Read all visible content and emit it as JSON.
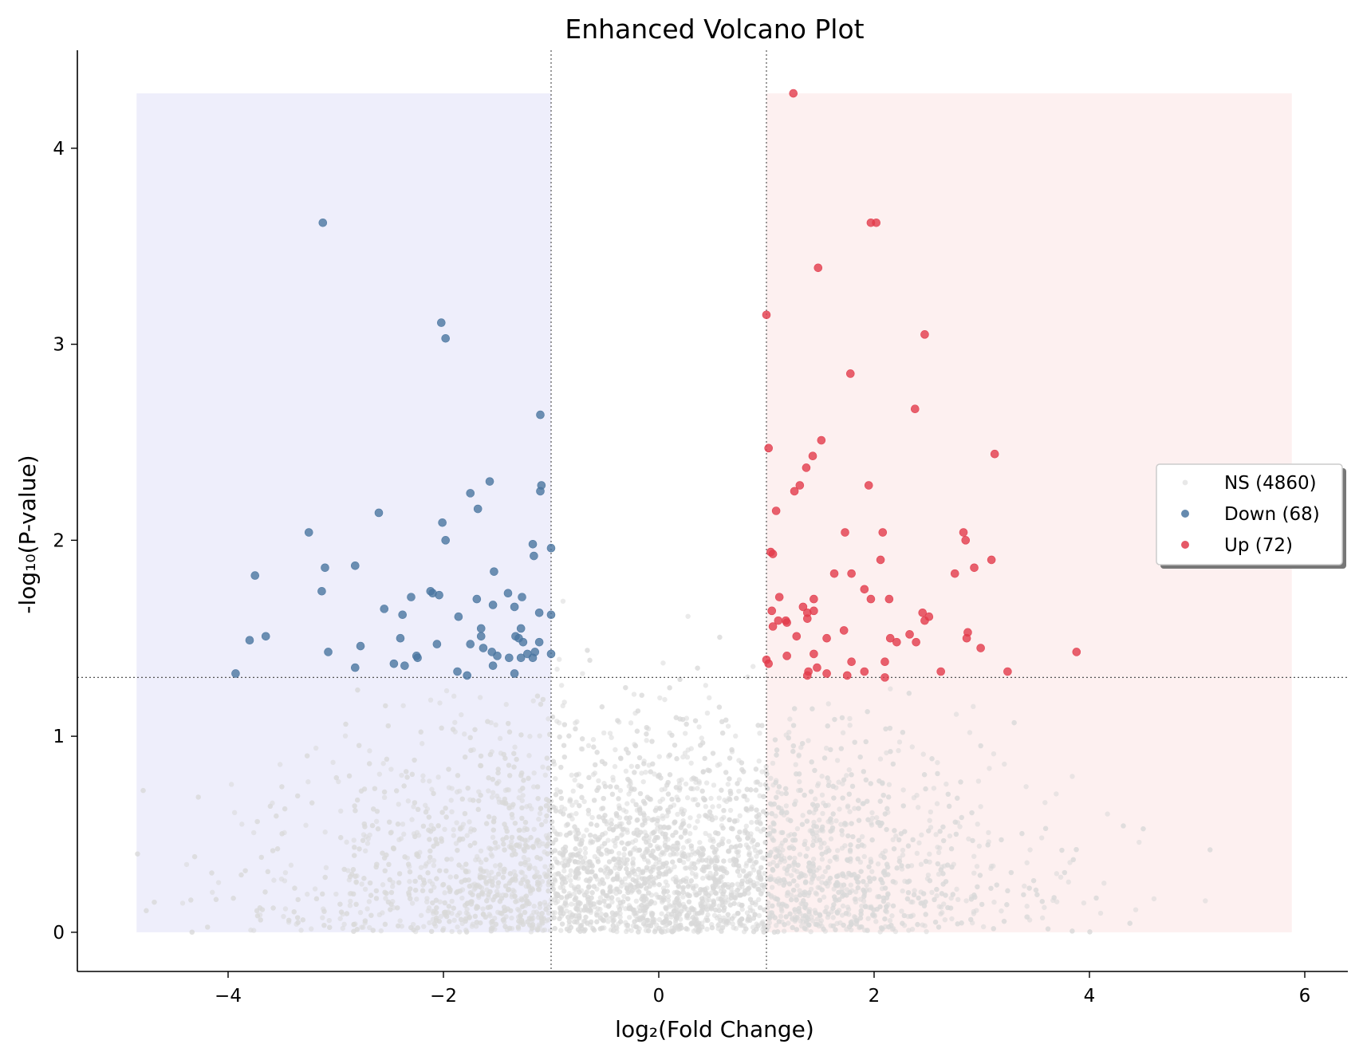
{
  "chart_data": {
    "type": "scatter",
    "title": "Enhanced Volcano Plot",
    "xlabel": "log₂(Fold Change)",
    "ylabel": "-log₁₀(P-value)",
    "xlim": [
      -5.4,
      6.4
    ],
    "ylim": [
      -0.2,
      4.5
    ],
    "xticks": [
      "−4",
      "−2",
      "0",
      "2",
      "4",
      "6"
    ],
    "xtick_values": [
      -4,
      -2,
      0,
      2,
      4,
      6
    ],
    "yticks": [
      "0",
      "1",
      "2",
      "3",
      "4"
    ],
    "ytick_values": [
      0,
      1,
      2,
      3,
      4
    ],
    "fc_thresholds": [
      -1,
      1
    ],
    "p_threshold": 1.3,
    "shaded_regions": {
      "down": {
        "x": [
          -4.85,
          -1
        ],
        "y": [
          0,
          4.28
        ],
        "color": "#eeeefb"
      },
      "up": {
        "x": [
          1,
          5.88
        ],
        "y": [
          0,
          4.28
        ],
        "color": "#fdf0f0"
      }
    },
    "legend_placement": "center-right",
    "series": [
      {
        "name": "NS (4860)",
        "color": "#d9d9d9",
        "count": 4860,
        "generated": true
      },
      {
        "name": "Down (68)",
        "color": "#4a76a0",
        "points": [
          [
            -3.12,
            3.62
          ],
          [
            -2.02,
            3.11
          ],
          [
            -1.98,
            3.03
          ],
          [
            -1.1,
            2.64
          ],
          [
            -1.57,
            2.3
          ],
          [
            -1.09,
            2.28
          ],
          [
            -1.1,
            2.25
          ],
          [
            -1.75,
            2.24
          ],
          [
            -1.68,
            2.16
          ],
          [
            -2.6,
            2.14
          ],
          [
            -2.01,
            2.09
          ],
          [
            -3.25,
            2.04
          ],
          [
            -1.98,
            2.0
          ],
          [
            -1.17,
            1.98
          ],
          [
            -1.0,
            1.96
          ],
          [
            -1.16,
            1.92
          ],
          [
            -2.82,
            1.87
          ],
          [
            -3.1,
            1.86
          ],
          [
            -1.53,
            1.84
          ],
          [
            -3.75,
            1.82
          ],
          [
            -3.13,
            1.74
          ],
          [
            -2.12,
            1.74
          ],
          [
            -2.1,
            1.73
          ],
          [
            -1.4,
            1.73
          ],
          [
            -2.04,
            1.72
          ],
          [
            -2.3,
            1.71
          ],
          [
            -1.27,
            1.71
          ],
          [
            -1.69,
            1.7
          ],
          [
            -1.54,
            1.67
          ],
          [
            -1.34,
            1.66
          ],
          [
            -2.55,
            1.65
          ],
          [
            -1.11,
            1.63
          ],
          [
            -1.0,
            1.62
          ],
          [
            -2.38,
            1.62
          ],
          [
            -1.86,
            1.61
          ],
          [
            -1.65,
            1.55
          ],
          [
            -1.28,
            1.55
          ],
          [
            -1.65,
            1.51
          ],
          [
            -3.65,
            1.51
          ],
          [
            -1.33,
            1.51
          ],
          [
            -1.3,
            1.5
          ],
          [
            -2.4,
            1.5
          ],
          [
            -3.8,
            1.49
          ],
          [
            -1.26,
            1.48
          ],
          [
            -1.11,
            1.48
          ],
          [
            -1.75,
            1.47
          ],
          [
            -2.06,
            1.47
          ],
          [
            -2.77,
            1.46
          ],
          [
            -1.63,
            1.45
          ],
          [
            -1.55,
            1.43
          ],
          [
            -1.15,
            1.43
          ],
          [
            -3.07,
            1.43
          ],
          [
            -1.22,
            1.42
          ],
          [
            -1.0,
            1.42
          ],
          [
            -1.5,
            1.41
          ],
          [
            -2.25,
            1.41
          ],
          [
            -1.39,
            1.4
          ],
          [
            -1.28,
            1.4
          ],
          [
            -1.17,
            1.4
          ],
          [
            -2.24,
            1.4
          ],
          [
            -2.46,
            1.37
          ],
          [
            -1.54,
            1.36
          ],
          [
            -2.36,
            1.36
          ],
          [
            -2.82,
            1.35
          ],
          [
            -1.87,
            1.33
          ],
          [
            -3.93,
            1.32
          ],
          [
            -1.34,
            1.32
          ],
          [
            -1.78,
            1.31
          ]
        ]
      },
      {
        "name": "Up (72)",
        "color": "#e23b4b",
        "points": [
          [
            1.25,
            4.28
          ],
          [
            1.97,
            3.62
          ],
          [
            2.02,
            3.62
          ],
          [
            1.48,
            3.39
          ],
          [
            1.0,
            3.15
          ],
          [
            2.47,
            3.05
          ],
          [
            1.78,
            2.85
          ],
          [
            2.38,
            2.67
          ],
          [
            1.51,
            2.51
          ],
          [
            1.02,
            2.47
          ],
          [
            3.12,
            2.44
          ],
          [
            1.43,
            2.43
          ],
          [
            1.37,
            2.37
          ],
          [
            1.31,
            2.28
          ],
          [
            1.95,
            2.28
          ],
          [
            1.26,
            2.25
          ],
          [
            1.09,
            2.15
          ],
          [
            1.73,
            2.04
          ],
          [
            2.08,
            2.04
          ],
          [
            2.83,
            2.04
          ],
          [
            2.85,
            2.0
          ],
          [
            1.06,
            1.93
          ],
          [
            1.04,
            1.94
          ],
          [
            3.09,
            1.9
          ],
          [
            2.06,
            1.9
          ],
          [
            2.93,
            1.86
          ],
          [
            1.63,
            1.83
          ],
          [
            1.79,
            1.83
          ],
          [
            2.75,
            1.83
          ],
          [
            1.91,
            1.75
          ],
          [
            1.12,
            1.71
          ],
          [
            1.97,
            1.7
          ],
          [
            2.14,
            1.7
          ],
          [
            1.44,
            1.7
          ],
          [
            1.34,
            1.66
          ],
          [
            1.05,
            1.64
          ],
          [
            1.38,
            1.63
          ],
          [
            1.44,
            1.64
          ],
          [
            2.45,
            1.63
          ],
          [
            2.51,
            1.61
          ],
          [
            2.47,
            1.59
          ],
          [
            1.38,
            1.6
          ],
          [
            1.11,
            1.59
          ],
          [
            1.19,
            1.58
          ],
          [
            1.18,
            1.59
          ],
          [
            1.06,
            1.56
          ],
          [
            1.72,
            1.54
          ],
          [
            2.87,
            1.53
          ],
          [
            2.33,
            1.52
          ],
          [
            1.28,
            1.51
          ],
          [
            2.86,
            1.5
          ],
          [
            1.56,
            1.5
          ],
          [
            2.15,
            1.5
          ],
          [
            2.21,
            1.48
          ],
          [
            2.39,
            1.48
          ],
          [
            2.99,
            1.45
          ],
          [
            1.44,
            1.42
          ],
          [
            3.88,
            1.43
          ],
          [
            1.19,
            1.41
          ],
          [
            1.0,
            1.39
          ],
          [
            1.02,
            1.37
          ],
          [
            1.79,
            1.38
          ],
          [
            2.1,
            1.38
          ],
          [
            1.47,
            1.35
          ],
          [
            1.39,
            1.33
          ],
          [
            1.56,
            1.32
          ],
          [
            1.91,
            1.33
          ],
          [
            2.62,
            1.33
          ],
          [
            3.24,
            1.33
          ],
          [
            1.38,
            1.31
          ],
          [
            1.75,
            1.31
          ],
          [
            2.1,
            1.3
          ]
        ]
      }
    ]
  }
}
